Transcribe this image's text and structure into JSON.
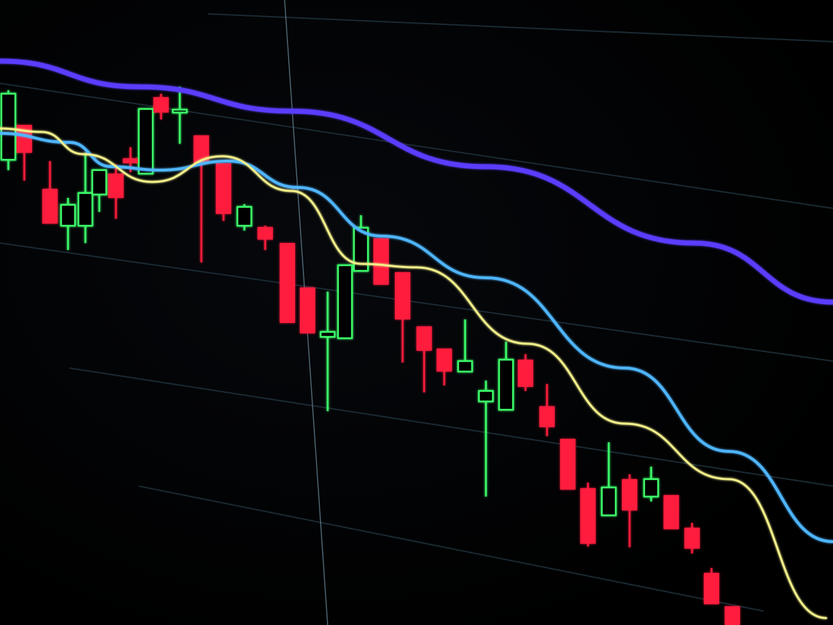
{
  "image": {
    "subject": "candlestick-chart-photo",
    "colors": {
      "background": "#000000",
      "bear_candle": "#ff1f3d",
      "bull_candle": "#3dff6a",
      "ma_slow": "#5a3cff",
      "ma_mid": "#4fb6ff",
      "ma_fast": "#f2ef8a",
      "grid": "#1a2a33",
      "crosshair": "#6c8fa0"
    }
  }
}
